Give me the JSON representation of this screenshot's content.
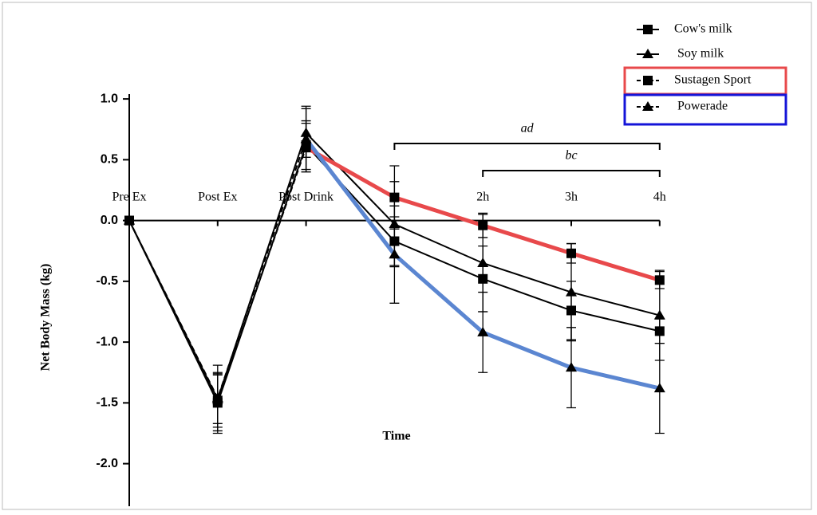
{
  "chart_data": {
    "type": "line",
    "y_label": "Net Body Mass (kg)",
    "x_label": "Time",
    "categories": [
      "Pre Ex",
      "Post Ex",
      "Post Drink",
      null,
      "2h",
      "3h",
      "4h"
    ],
    "ylim": [
      -2.35,
      1.04
    ],
    "yticks": [
      {
        "value": 1,
        "label": "1.0"
      },
      0.5,
      {
        "value": 0,
        "label": "0.0"
      },
      -0.5,
      {
        "value": -1,
        "label": "-1.0"
      },
      -1.5,
      {
        "value": -2,
        "label": "-2.0"
      }
    ],
    "series": [
      {
        "name": "Cow's milk",
        "color": "#000000",
        "marker": "square",
        "dashed": false,
        "values": [
          0,
          -1.5,
          0.62,
          -0.17,
          -0.48,
          -0.74,
          -0.91
        ],
        "errors": [
          0,
          0.25,
          0.2,
          0.2,
          0.27,
          0.24,
          0.1
        ]
      },
      {
        "name": "Soy milk",
        "color": "#000000",
        "marker": "triangle",
        "dashed": false,
        "values": [
          0,
          -1.47,
          0.72,
          -0.03,
          -0.35,
          -0.59,
          -0.78
        ],
        "errors": [
          0,
          0.2,
          0.2,
          0.35,
          0.4,
          0.4,
          0.37
        ]
      },
      {
        "name": "Sustagen Sport",
        "color": "#000000",
        "marker": "square",
        "dashed": true,
        "highlight": "#e8494b",
        "values": [
          0,
          -1.48,
          0.6,
          0.19,
          -0.04,
          -0.27,
          -0.49
        ],
        "errors": [
          0,
          0.22,
          0.2,
          0.26,
          0.1,
          0.08,
          0.07
        ]
      },
      {
        "name": "Powerade",
        "color": "#000000",
        "marker": "triangle",
        "dashed": true,
        "highlight": "#5b86d1",
        "values": [
          0,
          -1.46,
          0.67,
          -0.28,
          -0.92,
          -1.21,
          -1.38
        ],
        "errors": [
          0,
          0.27,
          0.27,
          0.4,
          0.33,
          0.33,
          0.37
        ]
      }
    ],
    "annotations": [
      {
        "text": "ad"
      },
      {
        "text": "bc"
      }
    ],
    "legend_box_colors": [
      "#e8494b",
      "#1414d8"
    ]
  }
}
